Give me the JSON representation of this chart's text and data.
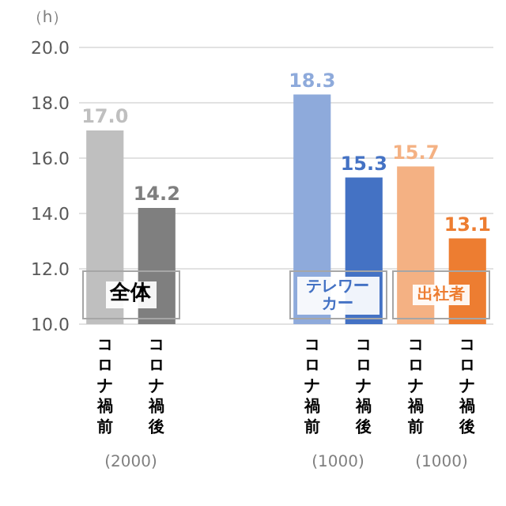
{
  "chart_data": {
    "type": "bar",
    "ylabel": "（h）",
    "categories": [
      "コロナ禍前",
      "コロナ禍後",
      null,
      null,
      "コロナ禍前",
      "コロナ禍後",
      "コロナ禍前",
      "コロナ禍後"
    ],
    "values": [
      17.0,
      14.2,
      null,
      null,
      18.3,
      15.3,
      15.7,
      13.1
    ],
    "colors": [
      "#bfbfbf",
      "#7f7f7f",
      null,
      null,
      "#8eaadb",
      "#4472c4",
      "#f4b183",
      "#ed7d31"
    ],
    "value_labels": [
      "17.0",
      "14.2",
      null,
      null,
      "18.3",
      "15.3",
      "15.7",
      "13.1"
    ],
    "ylim": [
      10,
      20
    ],
    "yticks": [
      {
        "value": 10,
        "label": "10.0"
      },
      {
        "value": 12,
        "label": "12.0"
      },
      {
        "value": 14,
        "label": "14.0"
      },
      {
        "value": 16,
        "label": "16.0"
      },
      {
        "value": 18,
        "label": "18.0"
      },
      {
        "value": 20,
        "label": "20.0"
      }
    ],
    "grid": "y",
    "annotations": [
      "全体",
      "テレワーカー",
      "出社者",
      "(2000)",
      "(1000)",
      "(1000)"
    ]
  }
}
